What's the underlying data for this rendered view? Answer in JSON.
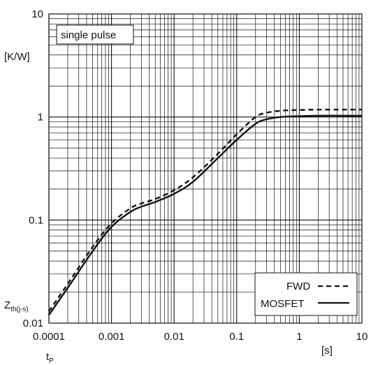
{
  "chart_data": {
    "type": "line",
    "x_scale": "log",
    "y_scale": "log",
    "xlim": [
      0.0001,
      10
    ],
    "ylim": [
      0.01,
      10
    ],
    "grid": true,
    "x_ticks": [
      "0.0001",
      "0.001",
      "0.01",
      "0.1",
      "1",
      "10"
    ],
    "y_ticks": [
      "0.01",
      "0.1",
      "1",
      "10"
    ],
    "x_unit": "[s]",
    "x_symbol": "t",
    "x_symbol_sub": "P",
    "y_unit": "[K/W]",
    "y_symbol": "Z",
    "y_symbol_sub": "th(j-s)",
    "annotation": "single pulse",
    "legend_position": "bottom-right",
    "series": [
      {
        "name": "FWD",
        "style": "dashed",
        "x": [
          0.0001,
          0.0002,
          0.0005,
          0.001,
          0.002,
          0.003,
          0.005,
          0.01,
          0.02,
          0.05,
          0.1,
          0.2,
          0.3,
          0.5,
          1,
          2,
          5,
          10
        ],
        "y": [
          0.013,
          0.024,
          0.055,
          0.093,
          0.13,
          0.145,
          0.16,
          0.195,
          0.26,
          0.44,
          0.68,
          1.0,
          1.1,
          1.15,
          1.17,
          1.18,
          1.18,
          1.18
        ]
      },
      {
        "name": "MOSFET",
        "style": "solid",
        "x": [
          0.0001,
          0.0002,
          0.0005,
          0.001,
          0.002,
          0.003,
          0.005,
          0.01,
          0.02,
          0.05,
          0.1,
          0.2,
          0.3,
          0.5,
          1,
          2,
          5,
          10
        ],
        "y": [
          0.012,
          0.022,
          0.05,
          0.086,
          0.12,
          0.135,
          0.15,
          0.18,
          0.235,
          0.4,
          0.6,
          0.86,
          0.95,
          1.0,
          1.02,
          1.03,
          1.03,
          1.03
        ]
      }
    ]
  }
}
